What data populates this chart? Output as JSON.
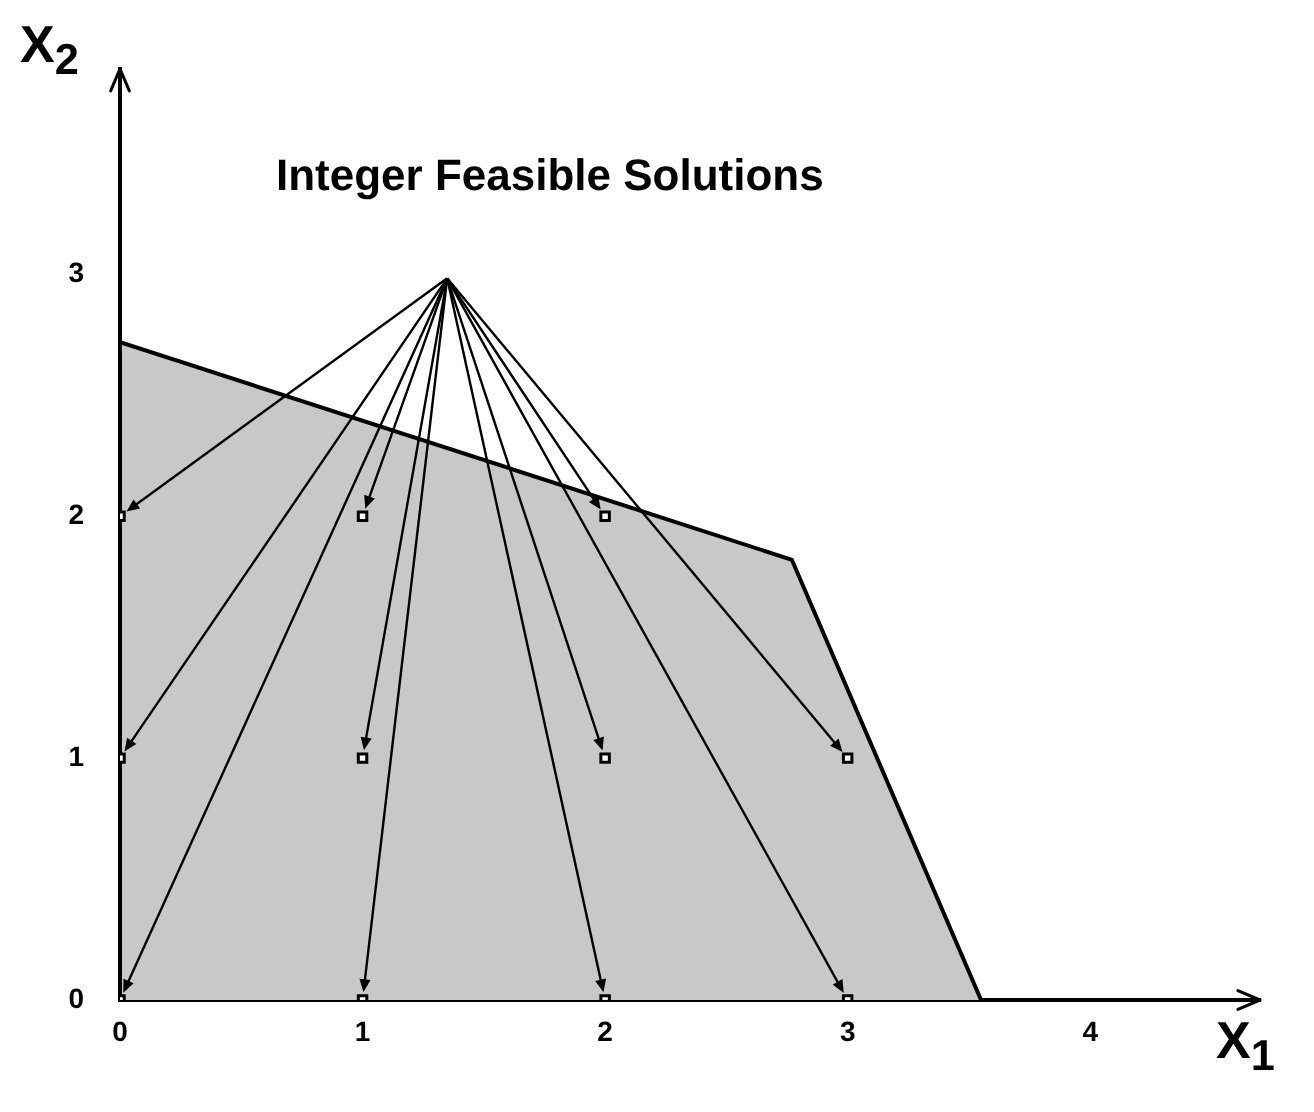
{
  "chart_data": {
    "type": "scatter",
    "xlabel": "X$_{1}$",
    "ylabel": "X$_{2}$",
    "annotations": [
      "Integer Feasible Solutions"
    ],
    "xlim": [
      0,
      4.7
    ],
    "ylim": [
      0,
      3.85
    ],
    "xticks": [
      0,
      1,
      2,
      3,
      4
    ],
    "yticks": [
      0,
      1,
      2,
      3
    ],
    "legend": false,
    "series": [
      {
        "type": "area",
        "color": "#c8c8c8",
        "x": [
          0,
          0,
          2.77,
          3.55
        ],
        "values": [
          0,
          2.72,
          1.82,
          0
        ]
      },
      {
        "type": "scatter",
        "color": "#000000",
        "marker": "square",
        "x": [
          0,
          1,
          2,
          3,
          0,
          1,
          2,
          3,
          0,
          1,
          2
        ],
        "values": [
          0,
          0,
          0,
          0,
          1,
          1,
          1,
          1,
          2,
          2,
          2
        ]
      }
    ]
  }
}
